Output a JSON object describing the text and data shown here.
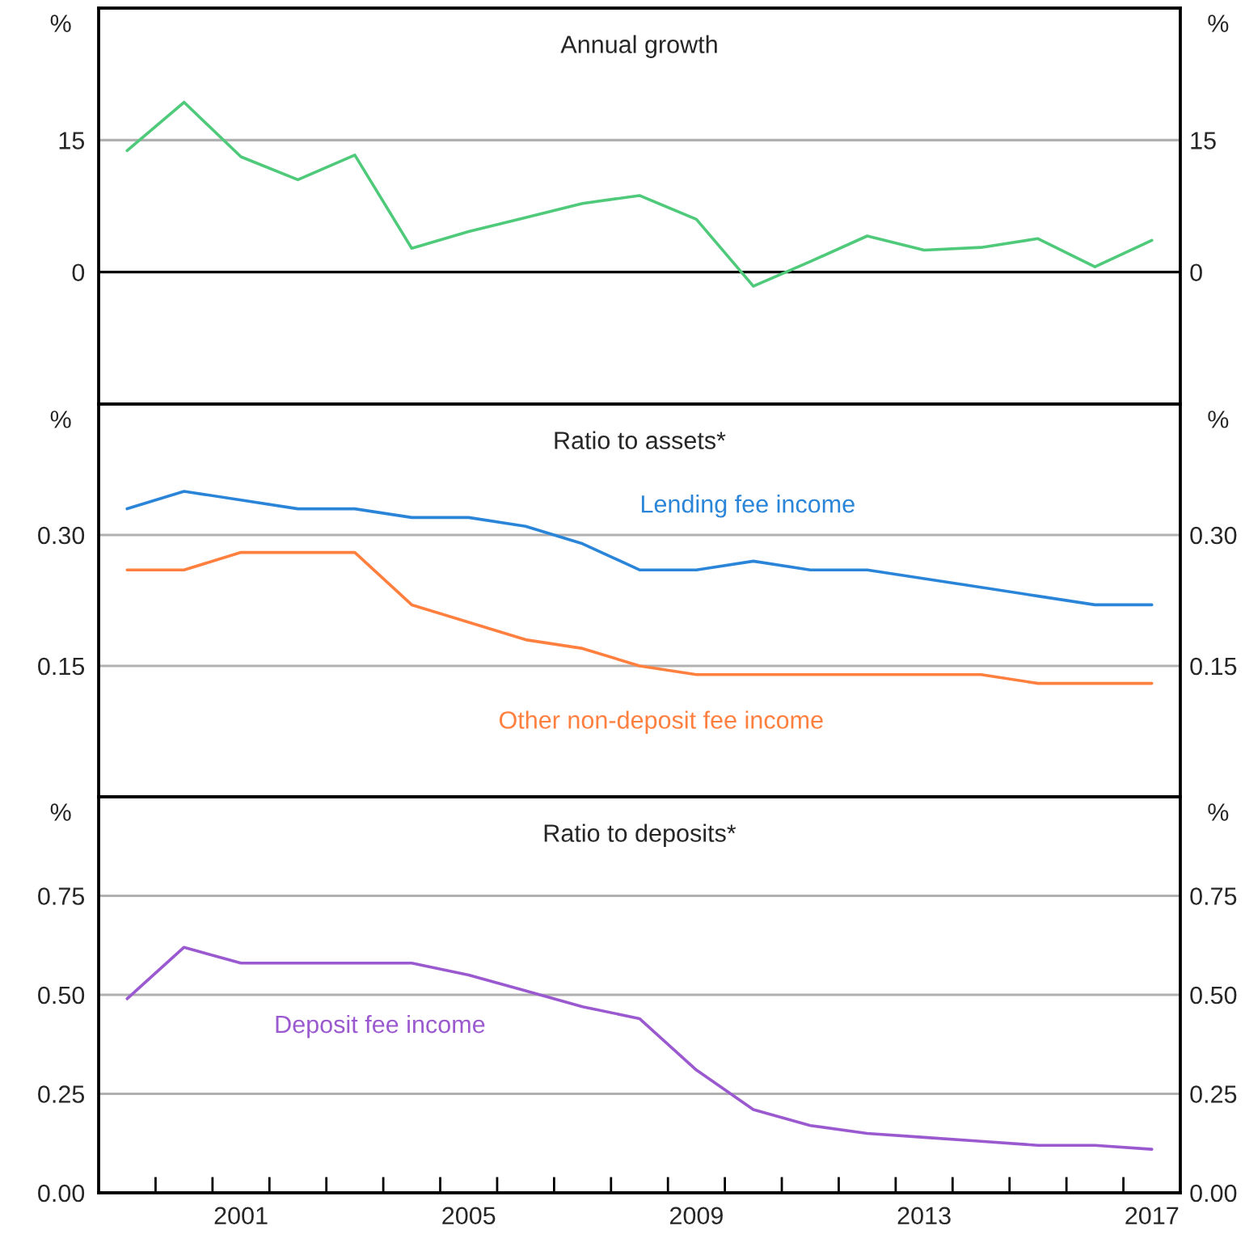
{
  "chart_data": [
    {
      "type": "line",
      "title": "Annual growth",
      "ylabel": "%",
      "y2label": "%",
      "x": [
        1999,
        2000,
        2001,
        2002,
        2003,
        2004,
        2005,
        2006,
        2007,
        2008,
        2009,
        2010,
        2011,
        2012,
        2013,
        2014,
        2015,
        2016,
        2017
      ],
      "series": [
        {
          "color": "#4fc97a",
          "values": [
            13.8,
            19.3,
            13.1,
            10.5,
            13.3,
            2.7,
            4.6,
            6.2,
            7.8,
            8.7,
            6.0,
            -1.6,
            1.2,
            4.1,
            2.5,
            2.8,
            3.8,
            0.6,
            3.6
          ]
        }
      ],
      "xlim": [
        1998.5,
        2017.5
      ],
      "ylim": [
        -15,
        30
      ],
      "yticks": [
        0,
        15
      ],
      "y2lim": [
        -15,
        30
      ],
      "y2ticks": [
        0,
        15
      ],
      "ref_lines": [
        {
          "axis": "y",
          "value": 0,
          "color": "#000000"
        },
        {
          "axis": "y",
          "value": 15,
          "color": "#b0b0b0"
        }
      ],
      "tick_labels": "y"
    },
    {
      "type": "line",
      "title": "Ratio to assets*",
      "ylabel": "%",
      "y2label": "%",
      "x": [
        1999,
        2000,
        2001,
        2002,
        2003,
        2004,
        2005,
        2006,
        2007,
        2008,
        2009,
        2010,
        2011,
        2012,
        2013,
        2014,
        2015,
        2016,
        2017
      ],
      "series": [
        {
          "name": "Lending fee income",
          "color": "#2a85d8",
          "values": [
            0.33,
            0.35,
            0.34,
            0.33,
            0.33,
            0.32,
            0.32,
            0.31,
            0.29,
            0.26,
            0.26,
            0.27,
            0.26,
            0.26,
            0.25,
            0.24,
            0.23,
            0.22,
            0.22
          ]
        },
        {
          "name": "Other non-deposit fee income",
          "color": "#ff7f3f",
          "values": [
            0.26,
            0.26,
            0.28,
            0.28,
            0.28,
            0.22,
            0.2,
            0.18,
            0.17,
            0.15,
            0.14,
            0.14,
            0.14,
            0.14,
            0.14,
            0.14,
            0.13,
            0.13,
            0.13
          ]
        }
      ],
      "xlim": [
        1998.5,
        2017.5
      ],
      "ylim": [
        0,
        0.45
      ],
      "yticks": [
        {
          "value": 0.15,
          "label": "0.15"
        },
        {
          "value": 0.3,
          "label": "0.30"
        }
      ],
      "y2lim": [
        0,
        0.45
      ],
      "y2ticks": [
        {
          "value": 0.15,
          "label": "0.15"
        },
        {
          "value": 0.3,
          "label": "0.30"
        }
      ],
      "grid": "y",
      "tick_labels": "y"
    },
    {
      "type": "line",
      "title": "Ratio to deposits*",
      "ylabel": "%",
      "y2label": "%",
      "x": [
        1999,
        2000,
        2001,
        2002,
        2003,
        2004,
        2005,
        2006,
        2007,
        2008,
        2009,
        2010,
        2011,
        2012,
        2013,
        2014,
        2015,
        2016,
        2017
      ],
      "series": [
        {
          "name": "Deposit fee income",
          "color": "#9b59d0",
          "values": [
            0.49,
            0.62,
            0.58,
            0.58,
            0.58,
            0.58,
            0.55,
            0.51,
            0.47,
            0.44,
            0.31,
            0.21,
            0.17,
            0.15,
            0.14,
            0.13,
            0.12,
            0.12,
            0.11
          ]
        }
      ],
      "xlim": [
        1998.5,
        2017.5
      ],
      "ylim": [
        0,
        1
      ],
      "yticks": [
        {
          "value": 0,
          "label": "0.00"
        },
        {
          "value": 0.25,
          "label": "0.25"
        },
        {
          "value": 0.5,
          "label": "0.50"
        },
        {
          "value": 0.75,
          "label": "0.75"
        }
      ],
      "y2lim": [
        0,
        1
      ],
      "y2ticks": [
        {
          "value": 0,
          "label": "0.00"
        },
        {
          "value": 0.25,
          "label": "0.25"
        },
        {
          "value": 0.5,
          "label": "0.50"
        },
        {
          "value": 0.75,
          "label": "0.75"
        }
      ],
      "xticks": [
        {
          "value": 1999.5,
          "label": null
        },
        {
          "value": 2000.5,
          "label": null
        },
        {
          "value": 2001.5,
          "label": null
        },
        {
          "value": 2002.5,
          "label": null
        },
        {
          "value": 2003.5,
          "label": null
        },
        {
          "value": 2004.5,
          "label": null
        },
        {
          "value": 2005.5,
          "label": null
        },
        {
          "value": 2006.5,
          "label": null
        },
        {
          "value": 2007.5,
          "label": null
        },
        {
          "value": 2008.5,
          "label": null
        },
        {
          "value": 2009.5,
          "label": null
        },
        {
          "value": 2010.5,
          "label": null
        },
        {
          "value": 2011.5,
          "label": null
        },
        {
          "value": 2012.5,
          "label": null
        },
        {
          "value": 2013.5,
          "label": null
        },
        {
          "value": 2014.5,
          "label": null
        },
        {
          "value": 2015.5,
          "label": null
        },
        {
          "value": 2016.5,
          "label": null
        },
        2001,
        2005,
        2009,
        2013,
        2017
      ],
      "grid": "y"
    }
  ]
}
